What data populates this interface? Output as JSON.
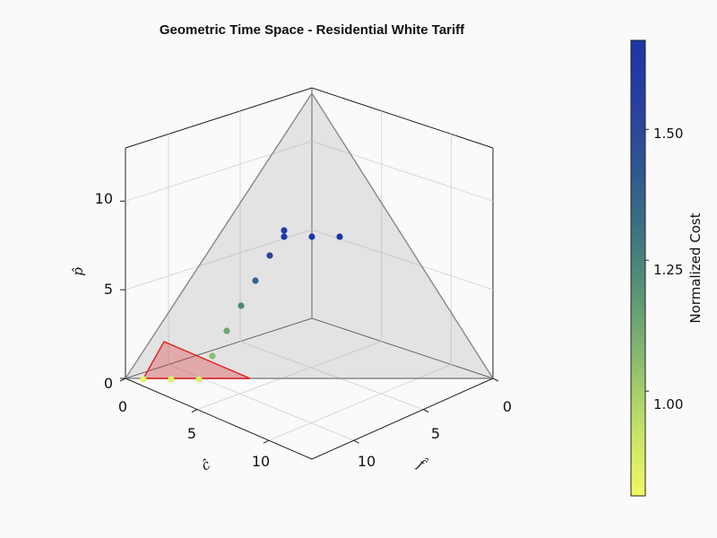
{
  "chart_data": {
    "type": "scatter",
    "title": "Geometric Time Space - Residential White Tariff",
    "axes": {
      "x": {
        "label": "ĉ",
        "ticks": [
          "0",
          "5",
          "10"
        ],
        "range": [
          0,
          13
        ]
      },
      "y": {
        "label": "f̂",
        "ticks": [
          "0",
          "5",
          "10"
        ],
        "range": [
          0,
          13
        ]
      },
      "z": {
        "label": "p̂",
        "ticks": [
          "0",
          "5",
          "10"
        ],
        "range": [
          0,
          13
        ]
      }
    },
    "grid": true,
    "colorbar": {
      "label": "Normalized Cost",
      "ticks": [
        "1.00",
        "1.25",
        "1.50"
      ],
      "range": [
        0.8,
        1.67
      ],
      "colors": [
        "#f0f763",
        "#c6e367",
        "#8fbf6e",
        "#5e9975",
        "#3d7580",
        "#2f578f",
        "#2a3fa1",
        "#1b36a8"
      ]
    },
    "points": [
      {
        "c": 1,
        "f": 0,
        "p": 0,
        "cost": 0.82
      },
      {
        "c": 3,
        "f": 2,
        "p": 0,
        "cost": 0.84
      },
      {
        "c": 5,
        "f": 4,
        "p": 0,
        "cost": 0.86
      },
      {
        "c": 4,
        "f": 3,
        "p": 2,
        "cost": 1.06
      },
      {
        "c": 4,
        "f": 3,
        "p": 4,
        "cost": 1.13
      },
      {
        "c": 4,
        "f": 3,
        "p": 6,
        "cost": 1.24
      },
      {
        "c": 4,
        "f": 3,
        "p": 8,
        "cost": 1.38
      },
      {
        "c": 4,
        "f": 3,
        "p": 10,
        "cost": 1.52
      },
      {
        "c": 4,
        "f": 3,
        "p": 12,
        "cost": 1.6
      },
      {
        "c": 3,
        "f": 4,
        "p": 13,
        "cost": 1.63
      },
      {
        "c": 4,
        "f": 4,
        "p": 13,
        "cost": 1.65
      },
      {
        "c": 5,
        "f": 4,
        "p": 13,
        "cost": 1.67
      }
    ],
    "gray_triangle": [
      [
        0,
        0,
        12
      ],
      [
        12,
        0,
        0
      ],
      [
        0,
        12,
        0
      ]
    ],
    "red_triangle": [
      [
        0,
        0,
        3
      ],
      [
        8,
        0,
        0
      ],
      [
        0,
        3,
        0
      ]
    ]
  }
}
